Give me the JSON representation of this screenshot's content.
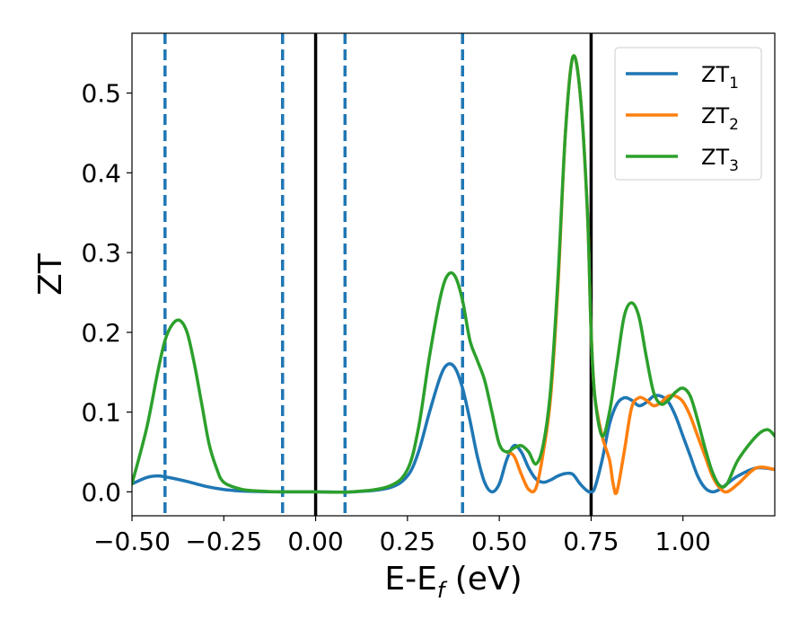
{
  "chart_data": {
    "type": "line",
    "title": "",
    "xlabel": "E-E",
    "xlabel_sub": "f",
    "xlabel_unit": " (eV)",
    "ylabel": "ZT",
    "xlim": [
      -0.5,
      1.25
    ],
    "ylim": [
      -0.03,
      0.575
    ],
    "grid": false,
    "legend_position": "top-right",
    "x_ticks": [
      {
        "value": -0.5,
        "label": "−0.50"
      },
      {
        "value": -0.25,
        "label": "−0.25"
      },
      {
        "value": 0.0,
        "label": "0.00"
      },
      {
        "value": 0.25,
        "label": "0.25"
      },
      {
        "value": 0.5,
        "label": "0.50"
      },
      {
        "value": 0.75,
        "label": "0.75"
      },
      {
        "value": 1.0,
        "label": "1.00"
      }
    ],
    "y_ticks": [
      {
        "value": 0.0,
        "label": "0.0"
      },
      {
        "value": 0.1,
        "label": "0.1"
      },
      {
        "value": 0.2,
        "label": "0.2"
      },
      {
        "value": 0.3,
        "label": "0.3"
      },
      {
        "value": 0.4,
        "label": "0.4"
      },
      {
        "value": 0.5,
        "label": "0.5"
      }
    ],
    "vlines_solid": [
      0.0,
      0.75
    ],
    "vlines_dashed": [
      -0.41,
      -0.09,
      0.08,
      0.4
    ],
    "series": [
      {
        "name": "ZT",
        "name_sub": "1",
        "color": "#1f77b4",
        "x": [
          -0.5,
          -0.46,
          -0.43,
          -0.4,
          -0.35,
          -0.3,
          -0.25,
          -0.2,
          -0.1,
          0.0,
          0.1,
          0.2,
          0.25,
          0.28,
          0.31,
          0.34,
          0.36,
          0.38,
          0.4,
          0.42,
          0.44,
          0.46,
          0.48,
          0.5,
          0.52,
          0.54,
          0.56,
          0.58,
          0.6,
          0.62,
          0.64,
          0.66,
          0.68,
          0.7,
          0.72,
          0.74,
          0.75,
          0.76,
          0.78,
          0.8,
          0.82,
          0.84,
          0.86,
          0.88,
          0.9,
          0.92,
          0.94,
          0.96,
          0.98,
          1.0,
          1.02,
          1.04,
          1.06,
          1.08,
          1.1,
          1.12,
          1.15,
          1.2,
          1.25
        ],
        "y": [
          0.01,
          0.018,
          0.02,
          0.018,
          0.013,
          0.007,
          0.003,
          0.001,
          0.0,
          0.0,
          0.0,
          0.005,
          0.02,
          0.05,
          0.1,
          0.145,
          0.16,
          0.155,
          0.13,
          0.09,
          0.045,
          0.012,
          0.0,
          0.01,
          0.04,
          0.058,
          0.05,
          0.03,
          0.016,
          0.012,
          0.015,
          0.02,
          0.023,
          0.022,
          0.01,
          0.001,
          0.0,
          0.005,
          0.04,
          0.085,
          0.11,
          0.118,
          0.115,
          0.108,
          0.112,
          0.12,
          0.12,
          0.113,
          0.095,
          0.07,
          0.045,
          0.02,
          0.005,
          0.0,
          0.003,
          0.01,
          0.02,
          0.03,
          0.028
        ]
      },
      {
        "name": "ZT",
        "name_sub": "2",
        "color": "#ff7f0e",
        "x": [
          0.52,
          0.54,
          0.56,
          0.58,
          0.6,
          0.62,
          0.64,
          0.66,
          0.68,
          0.7,
          0.72,
          0.74,
          0.75,
          0.76,
          0.78,
          0.8,
          0.81,
          0.82,
          0.84,
          0.86,
          0.88,
          0.9,
          0.92,
          0.94,
          0.96,
          0.98,
          1.0,
          1.02,
          1.04,
          1.06,
          1.08,
          1.1,
          1.12,
          1.15,
          1.2,
          1.25
        ],
        "y": [
          0.05,
          0.045,
          0.022,
          0.003,
          0.005,
          0.05,
          0.12,
          0.26,
          0.45,
          0.545,
          0.5,
          0.35,
          0.2,
          0.12,
          0.07,
          0.04,
          0.01,
          0.0,
          0.05,
          0.105,
          0.118,
          0.115,
          0.108,
          0.112,
          0.12,
          0.12,
          0.113,
          0.095,
          0.07,
          0.045,
          0.02,
          0.005,
          0.0,
          0.01,
          0.03,
          0.028
        ]
      },
      {
        "name": "ZT",
        "name_sub": "3",
        "color": "#2ca02c",
        "x": [
          -0.5,
          -0.46,
          -0.43,
          -0.41,
          -0.39,
          -0.37,
          -0.35,
          -0.33,
          -0.31,
          -0.29,
          -0.27,
          -0.25,
          -0.2,
          -0.15,
          -0.1,
          0.0,
          0.1,
          0.2,
          0.25,
          0.28,
          0.31,
          0.34,
          0.36,
          0.38,
          0.4,
          0.42,
          0.44,
          0.46,
          0.48,
          0.5,
          0.52,
          0.54,
          0.56,
          0.58,
          0.6,
          0.62,
          0.64,
          0.66,
          0.68,
          0.7,
          0.72,
          0.74,
          0.75,
          0.76,
          0.78,
          0.8,
          0.82,
          0.84,
          0.86,
          0.88,
          0.9,
          0.92,
          0.94,
          0.96,
          0.98,
          1.0,
          1.02,
          1.04,
          1.06,
          1.08,
          1.1,
          1.12,
          1.15,
          1.2,
          1.23,
          1.25
        ],
        "y": [
          0.01,
          0.08,
          0.15,
          0.19,
          0.21,
          0.215,
          0.2,
          0.16,
          0.11,
          0.06,
          0.03,
          0.012,
          0.003,
          0.001,
          0.0,
          0.0,
          0.0,
          0.007,
          0.028,
          0.08,
          0.17,
          0.245,
          0.272,
          0.27,
          0.24,
          0.19,
          0.165,
          0.14,
          0.1,
          0.06,
          0.05,
          0.055,
          0.058,
          0.05,
          0.035,
          0.06,
          0.13,
          0.27,
          0.45,
          0.545,
          0.5,
          0.35,
          0.2,
          0.12,
          0.07,
          0.1,
          0.16,
          0.22,
          0.237,
          0.22,
          0.17,
          0.125,
          0.11,
          0.115,
          0.125,
          0.13,
          0.12,
          0.09,
          0.055,
          0.025,
          0.008,
          0.01,
          0.04,
          0.07,
          0.078,
          0.07
        ]
      }
    ]
  }
}
